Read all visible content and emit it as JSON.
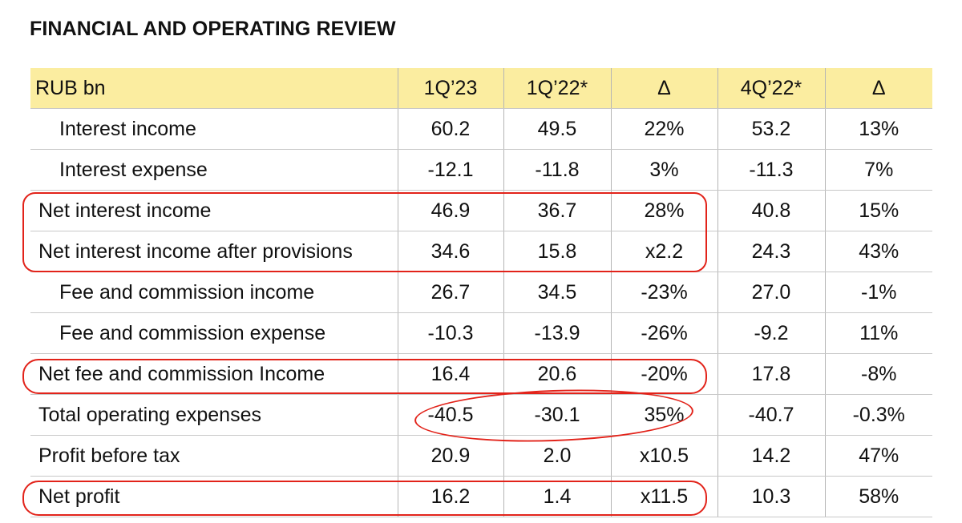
{
  "title": "FINANCIAL AND OPERATING REVIEW",
  "table": {
    "headers": [
      "RUB bn",
      "1Q’23",
      "1Q’22*",
      "Δ",
      "4Q’22*",
      "Δ"
    ],
    "rows": [
      {
        "label": "Interest income",
        "values": [
          "60.2",
          "49.5",
          "22%",
          "53.2",
          "13%"
        ]
      },
      {
        "label": "Interest expense",
        "values": [
          "-12.1",
          "-11.8",
          "3%",
          "-11.3",
          "7%"
        ]
      },
      {
        "label": "Net interest income",
        "values": [
          "46.9",
          "36.7",
          "28%",
          "40.8",
          "15%"
        ]
      },
      {
        "label": "Net interest income after provisions",
        "values": [
          "34.6",
          "15.8",
          "x2.2",
          "24.3",
          "43%"
        ]
      },
      {
        "label": "Fee and commission income",
        "values": [
          "26.7",
          "34.5",
          "-23%",
          "27.0",
          "-1%"
        ]
      },
      {
        "label": "Fee and commission expense",
        "values": [
          "-10.3",
          "-13.9",
          "-26%",
          "-9.2",
          "11%"
        ]
      },
      {
        "label": "Net fee and commission Income",
        "values": [
          "16.4",
          "20.6",
          "-20%",
          "17.8",
          "-8%"
        ]
      },
      {
        "label": "Total operating expenses",
        "values": [
          "-40.5",
          "-30.1",
          "35%",
          "-40.7",
          "-0.3%"
        ]
      },
      {
        "label": "Profit before tax",
        "values": [
          "20.9",
          "2.0",
          "x10.5",
          "14.2",
          "47%"
        ]
      },
      {
        "label": "Net profit",
        "values": [
          "16.2",
          "1.4",
          "x11.5",
          "10.3",
          "58%"
        ]
      }
    ]
  },
  "colors": {
    "header_bg": "#fbeda0",
    "highlight": "#e2231a"
  }
}
